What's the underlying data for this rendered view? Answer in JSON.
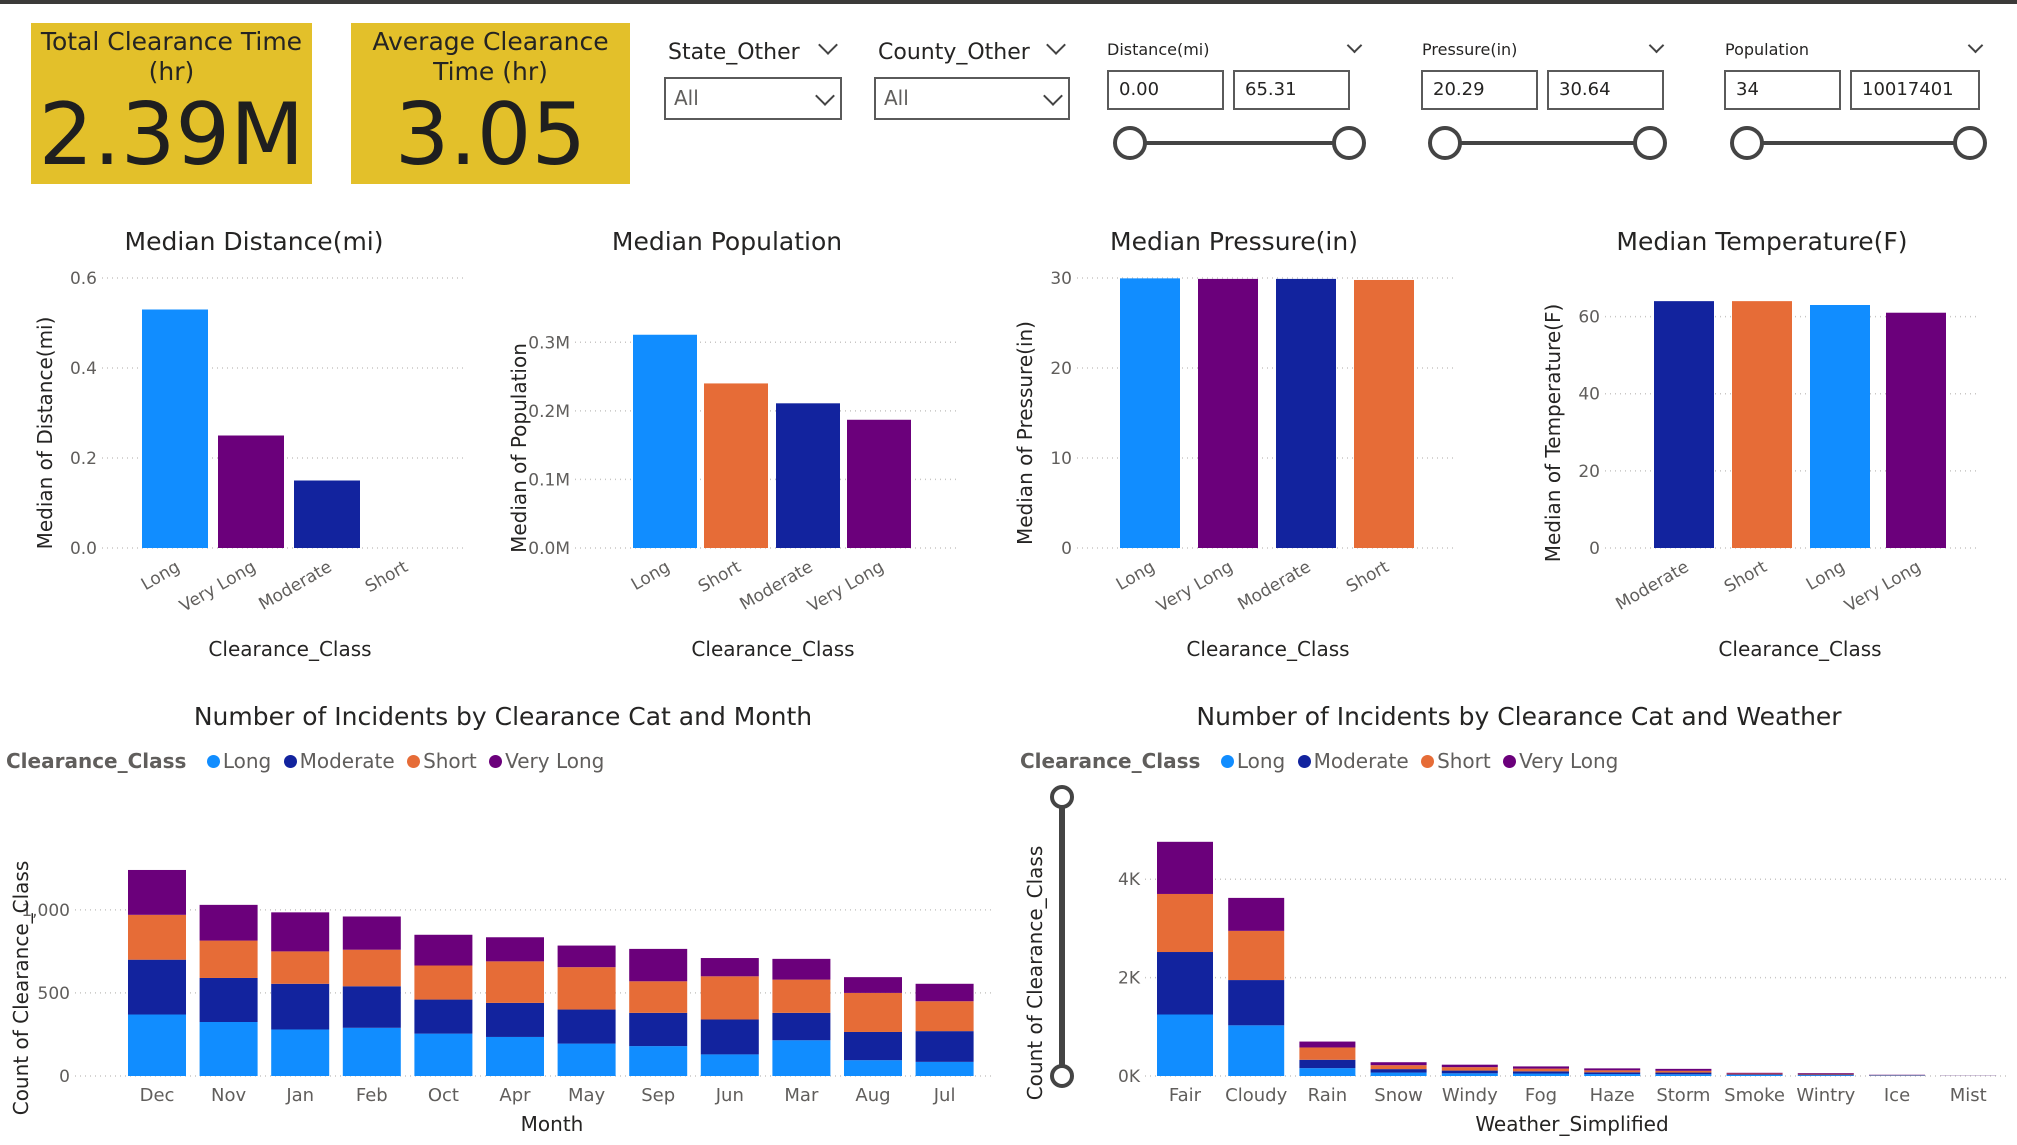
{
  "kpis": [
    {
      "title": "Total Clearance Time (hr)",
      "value": "2.39M"
    },
    {
      "title": "Average Clearance Time (hr)",
      "value": "3.05"
    }
  ],
  "slicers": {
    "state": {
      "title": "State_Other",
      "selected": "All"
    },
    "county": {
      "title": "County_Other",
      "selected": "All"
    },
    "distance": {
      "title": "Distance(mi)",
      "min": "0.00",
      "max": "65.31"
    },
    "pressure": {
      "title": "Pressure(in)",
      "min": "20.29",
      "max": "30.64"
    },
    "population": {
      "title": "Population",
      "min": "34",
      "max": "10017401"
    }
  },
  "colors": {
    "Long": "#118dff",
    "Moderate": "#12239e",
    "Short": "#e66c37",
    "Very Long": "#6b007b",
    "kpi_bg": "#e3c02a"
  },
  "chart_data": [
    {
      "type": "bar",
      "title": "Median Distance(mi)",
      "xlabel": "Clearance_Class",
      "ylabel": "Median of Distance(mi)",
      "categories": [
        "Long",
        "Very Long",
        "Moderate",
        "Short"
      ],
      "values": [
        0.53,
        0.25,
        0.15,
        0
      ],
      "ylim": [
        0,
        0.6
      ],
      "yticks": [
        0,
        0.2,
        0.4,
        0.6
      ],
      "ytick_labels": [
        "0.0",
        "0.2",
        "0.4",
        "0.6"
      ]
    },
    {
      "type": "bar",
      "title": "Median Population",
      "xlabel": "Clearance_Class",
      "ylabel": "Median of Population",
      "categories": [
        "Long",
        "Short",
        "Moderate",
        "Very Long"
      ],
      "values": [
        311000,
        240000,
        211000,
        187000
      ],
      "ylim": [
        0,
        0.35
      ],
      "yticks": [
        0,
        100000,
        200000,
        300000
      ],
      "ytick_labels": [
        "0.0M",
        "0.1M",
        "0.2M",
        "0.3M"
      ]
    },
    {
      "type": "bar",
      "title": "Median Pressure(in)",
      "xlabel": "Clearance_Class",
      "ylabel": "Median of Pressure(in)",
      "categories": [
        "Long",
        "Very Long",
        "Moderate",
        "Short"
      ],
      "values": [
        29.96,
        29.9,
        29.9,
        29.78
      ],
      "ylim": [
        0,
        30
      ],
      "yticks": [
        0,
        10,
        20,
        30
      ],
      "ytick_labels": [
        "0",
        "10",
        "20",
        "30"
      ]
    },
    {
      "type": "bar",
      "title": "Median Temperature(F)",
      "xlabel": "Clearance_Class",
      "ylabel": "Median of Temperature(F)",
      "categories": [
        "Moderate",
        "Short",
        "Long",
        "Very Long"
      ],
      "values": [
        64,
        64,
        63,
        61
      ],
      "ylim": [
        0,
        70
      ],
      "yticks": [
        0,
        20,
        40,
        60
      ],
      "ytick_labels": [
        "0",
        "20",
        "40",
        "60"
      ]
    },
    {
      "type": "bar",
      "stacked": true,
      "title": "Number of Incidents by Clearance Cat and Month",
      "legend_title": "Clearance_Class",
      "xlabel": "Month",
      "ylabel": "Count of Clearance_Class",
      "categories": [
        "Dec",
        "Nov",
        "Jan",
        "Feb",
        "Oct",
        "Apr",
        "May",
        "Sep",
        "Jun",
        "Mar",
        "Aug",
        "Jul"
      ],
      "series": [
        {
          "name": "Long",
          "values": [
            370,
            325,
            280,
            290,
            255,
            235,
            195,
            180,
            130,
            215,
            95,
            85
          ]
        },
        {
          "name": "Moderate",
          "values": [
            330,
            265,
            275,
            250,
            205,
            205,
            205,
            200,
            210,
            165,
            170,
            185
          ]
        },
        {
          "name": "Short",
          "values": [
            270,
            225,
            195,
            220,
            205,
            250,
            255,
            190,
            260,
            200,
            235,
            180
          ]
        },
        {
          "name": "Very Long",
          "values": [
            270,
            215,
            235,
            200,
            185,
            145,
            130,
            195,
            110,
            125,
            95,
            105
          ]
        }
      ],
      "ylim": [
        0,
        1300
      ],
      "yticks": [
        0,
        500,
        1000
      ],
      "ytick_labels": [
        "0",
        "500",
        "1,000"
      ]
    },
    {
      "type": "bar",
      "stacked": true,
      "title": "Number of Incidents by Clearance Cat and Weather",
      "legend_title": "Clearance_Class",
      "xlabel": "Weather_Simplified",
      "ylabel": "Count of Clearance_Class",
      "categories": [
        "Fair",
        "Cloudy",
        "Rain",
        "Snow",
        "Windy",
        "Fog",
        "Haze",
        "Storm",
        "Smoke",
        "Wintry",
        "Ice",
        "Mist"
      ],
      "series": [
        {
          "name": "Long",
          "values": [
            1250,
            1030,
            160,
            70,
            55,
            50,
            40,
            35,
            20,
            15,
            8,
            2
          ]
        },
        {
          "name": "Moderate",
          "values": [
            1270,
            920,
            170,
            70,
            55,
            45,
            35,
            35,
            15,
            15,
            6,
            2
          ]
        },
        {
          "name": "Short",
          "values": [
            1180,
            1000,
            250,
            80,
            70,
            55,
            40,
            35,
            15,
            15,
            6,
            2
          ]
        },
        {
          "name": "Very Long",
          "values": [
            1060,
            670,
            120,
            60,
            50,
            45,
            40,
            40,
            15,
            15,
            5,
            2
          ]
        }
      ],
      "ylim": [
        0,
        5000
      ],
      "yticks": [
        0,
        2000,
        4000
      ],
      "ytick_labels": [
        "0K",
        "2K",
        "4K"
      ]
    }
  ]
}
